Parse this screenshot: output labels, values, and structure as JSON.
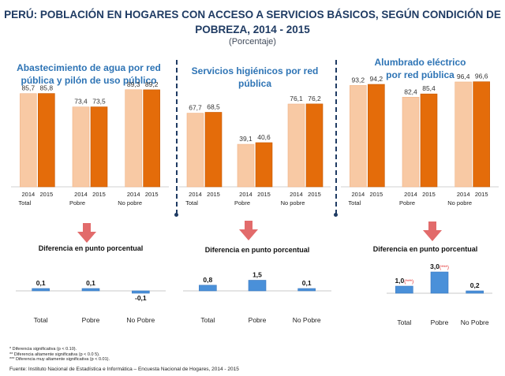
{
  "title_line1": "PERÚ: POBLACIÓN EN HOGARES CON ACCESO A SERVICIOS BÁSICOS, SEGÚN CONDICIÓN DE",
  "title_line2": "POBREZA, 2014 - 2015",
  "subtitle": "(Porcentaje)",
  "colors": {
    "bar2014": "#f8c9a4",
    "bar2015": "#e46c0a",
    "diff": "#4a90d9",
    "title": "#1f3b63",
    "panel_title": "#2e74b5",
    "arrow": "#e26b6b"
  },
  "diff_label": "Diferencia en punto porcentual",
  "chart_data": [
    {
      "type": "bar",
      "title": "Abastecimiento de agua por red pública y pilón de uso público",
      "title_lines": [
        "Abastecimiento de agua por red",
        "pública y pilón de uso público"
      ],
      "groups": [
        "Total",
        "Pobre",
        "No pobre"
      ],
      "years": [
        "2014",
        "2015"
      ],
      "series": [
        {
          "name": "2014",
          "values": [
            85.7,
            73.4,
            89.3
          ],
          "labels": [
            "85,7",
            "73,4",
            "89,3"
          ]
        },
        {
          "name": "2015",
          "values": [
            85.8,
            73.5,
            89.2
          ],
          "labels": [
            "85,8",
            "73,5",
            "89,2"
          ]
        }
      ],
      "ylim": [
        0,
        100
      ]
    },
    {
      "type": "bar",
      "title": "Servicios higiénicos por red pública",
      "title_lines": [
        "Servicios higiénicos por red",
        "pública"
      ],
      "groups": [
        "Total",
        "Pobre",
        "No pobre"
      ],
      "years": [
        "2014",
        "2015"
      ],
      "series": [
        {
          "name": "2014",
          "values": [
            67.7,
            39.1,
            76.1
          ],
          "labels": [
            "67,7",
            "39,1",
            "76,1"
          ]
        },
        {
          "name": "2015",
          "values": [
            68.5,
            40.6,
            76.2
          ],
          "labels": [
            "68,5",
            "40,6",
            "76,2"
          ]
        }
      ],
      "ylim": [
        0,
        100
      ]
    },
    {
      "type": "bar",
      "title": "Alumbrado eléctrico por red pública",
      "title_lines": [
        "Alumbrado eléctrico",
        "por red pública"
      ],
      "groups": [
        "Total",
        "Pobre",
        "No pobre"
      ],
      "years": [
        "2014",
        "2015"
      ],
      "series": [
        {
          "name": "2014",
          "values": [
            93.2,
            82.4,
            96.4
          ],
          "labels": [
            "93,2",
            "82,4",
            "96,4"
          ]
        },
        {
          "name": "2015",
          "values": [
            94.2,
            85.4,
            96.6
          ],
          "labels": [
            "94,2",
            "85,4",
            "96,6"
          ]
        }
      ],
      "ylim": [
        0,
        100
      ]
    },
    {
      "type": "bar",
      "title": "Diferencia en punto porcentual",
      "categories": [
        "Total",
        "Pobre",
        "No Pobre"
      ],
      "values": [
        0.1,
        0.1,
        -0.1
      ],
      "labels": [
        "0,1",
        "0,1",
        "-0,1"
      ],
      "marks": [
        "",
        "",
        ""
      ]
    },
    {
      "type": "bar",
      "title": "Diferencia en punto porcentual",
      "categories": [
        "Total",
        "Pobre",
        "No Pobre"
      ],
      "values": [
        0.8,
        1.5,
        0.1
      ],
      "labels": [
        "0,8",
        "1,5",
        "0,1"
      ],
      "marks": [
        "",
        "",
        ""
      ]
    },
    {
      "type": "bar",
      "title": "Diferencia en punto porcentual",
      "categories": [
        "Total",
        "Pobre",
        "No Pobre"
      ],
      "values": [
        1.0,
        3.0,
        0.2
      ],
      "labels": [
        "1,0",
        "3,0",
        "0,2"
      ],
      "marks": [
        "(***)",
        "(***)",
        ""
      ]
    }
  ],
  "notes": [
    "* Diferencia significativa (p <  0.10).",
    "** Diferencia altamente significativa (p < 0.0 5).",
    "*** Diferencia muy altamente significativa (p < 0.01)."
  ],
  "source": "Fuente: Instituto Nacional de Estadística e Informática – Encuesta Nacional de Hogares, 2014 - 2015"
}
